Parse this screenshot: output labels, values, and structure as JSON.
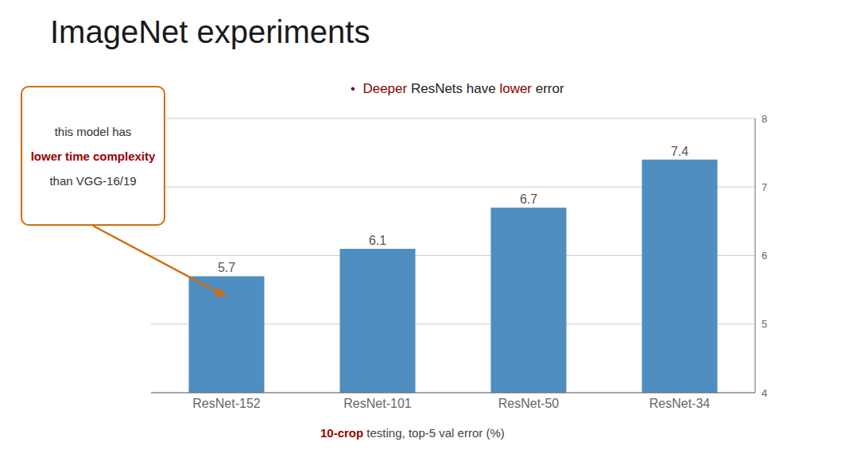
{
  "chart_data": {
    "type": "bar",
    "title": "ImageNet experiments",
    "categories": [
      "ResNet-152",
      "ResNet-101",
      "ResNet-50",
      "ResNet-34"
    ],
    "values": [
      5.7,
      6.1,
      6.7,
      7.4
    ],
    "color": "#4e8ec0",
    "ylim": [
      4,
      8
    ],
    "yticks": [
      4,
      5,
      6,
      7,
      8
    ],
    "grid": true,
    "data_labels": true,
    "xlabel": [
      {
        "text": "10-crop",
        "color": "#9b0000",
        "bold": true
      },
      {
        "text": " testing, top-5 val error (%)",
        "color": "#444444"
      }
    ],
    "annotations": [
      {
        "pieces": [
          {
            "text": "•  ",
            "color": "#8b0000"
          },
          {
            "text": "Deeper",
            "color": "#8b0000"
          },
          {
            "text": " ResNets have ",
            "color": "#222222"
          },
          {
            "text": "lower",
            "color": "#8b0000"
          },
          {
            "text": " error",
            "color": "#222222"
          }
        ]
      },
      {
        "lines": [
          {
            "text": "this model has",
            "color": "#333333"
          },
          {
            "text": "lower time complexity",
            "color": "#9b0000",
            "bold": true
          },
          {
            "text": "than VGG-16/19",
            "color": "#333333"
          }
        ],
        "color": "#d46b0a",
        "arrow": "ResNet-152"
      }
    ]
  }
}
